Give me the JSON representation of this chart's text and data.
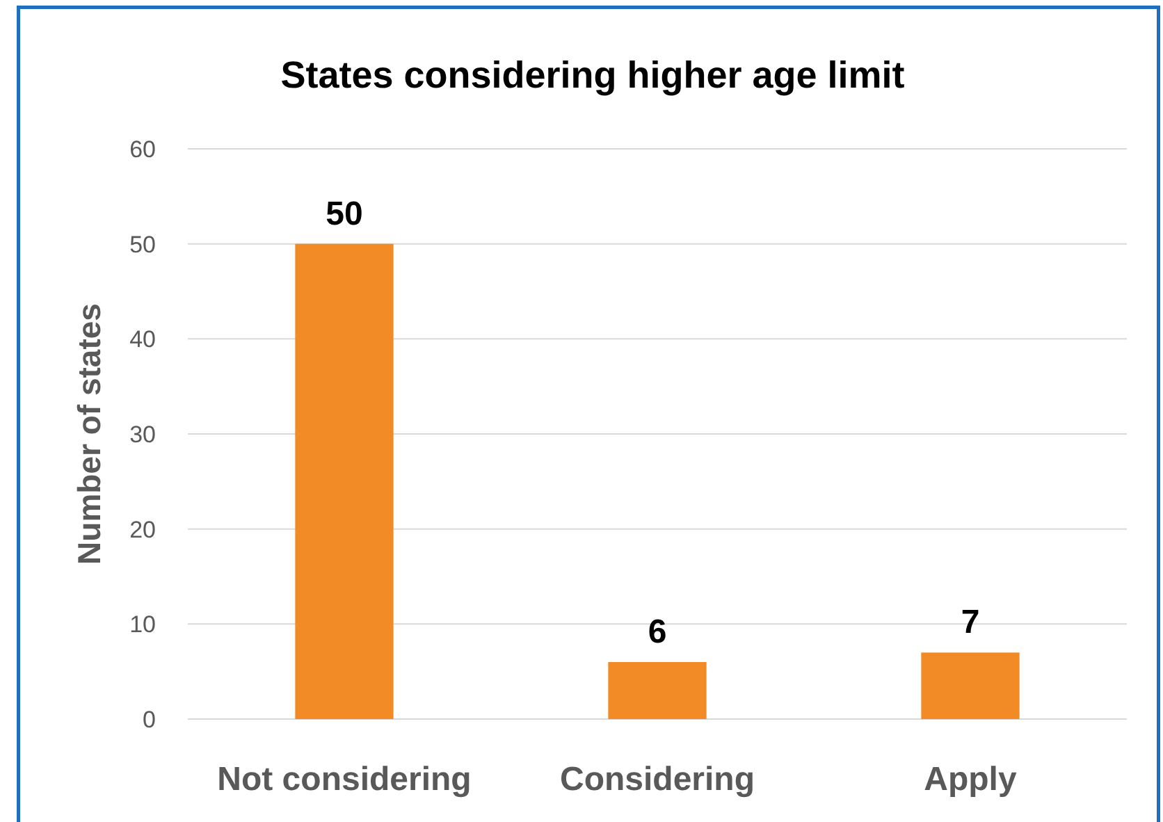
{
  "chart_data": {
    "type": "bar",
    "title": "States considering higher age limit",
    "ylabel": "Number of states",
    "categories": [
      "Not considering",
      "Considering",
      "Apply"
    ],
    "values": [
      50,
      6,
      7
    ],
    "color": "#f28a26",
    "ylim": [
      0,
      60
    ],
    "yticks": [
      0,
      10,
      20,
      30,
      40,
      50,
      60
    ],
    "grid": "y",
    "data_labels": true
  }
}
